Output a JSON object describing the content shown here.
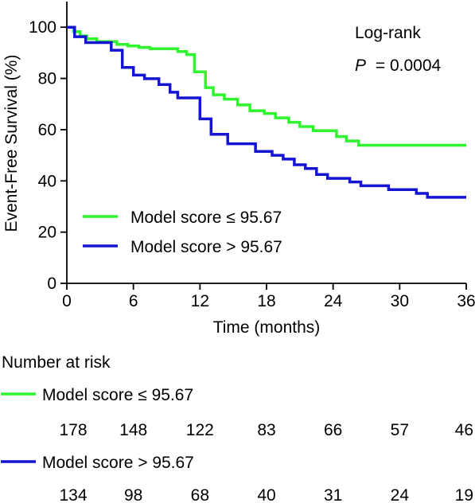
{
  "chart_data": {
    "type": "line",
    "title": "",
    "xlabel": "Time (months)",
    "ylabel": "Event-Free Survival (%)",
    "xlim": [
      0,
      36
    ],
    "ylim": [
      0,
      110
    ],
    "x_ticks": [
      0,
      6,
      12,
      18,
      24,
      30,
      36
    ],
    "y_ticks": [
      0,
      20,
      40,
      60,
      80,
      100
    ],
    "grid": false,
    "step": true,
    "legend_position": "lower-left",
    "annotation": {
      "test": "Log-rank",
      "p_label": "P",
      "p_value": "= 0.0004"
    },
    "series": [
      {
        "name": "Model score ≤ 95.67",
        "color": "#2ef52e",
        "points": [
          [
            0,
            100
          ],
          [
            0.6,
            100
          ],
          [
            0.6,
            98.3
          ],
          [
            1.2,
            98.3
          ],
          [
            1.2,
            96.6
          ],
          [
            1.8,
            96.6
          ],
          [
            1.8,
            95.5
          ],
          [
            2.7,
            95.5
          ],
          [
            2.7,
            94.4
          ],
          [
            4.5,
            94.4
          ],
          [
            4.5,
            93.3
          ],
          [
            5.5,
            93.3
          ],
          [
            5.5,
            92.7
          ],
          [
            6.5,
            92.7
          ],
          [
            6.5,
            92.1
          ],
          [
            7.5,
            92.1
          ],
          [
            7.5,
            91.6
          ],
          [
            10,
            91.6
          ],
          [
            10,
            90.5
          ],
          [
            10.8,
            90.5
          ],
          [
            10.8,
            89.3
          ],
          [
            11.5,
            89.3
          ],
          [
            11.5,
            82.6
          ],
          [
            12.5,
            82.6
          ],
          [
            12.5,
            76.4
          ],
          [
            13.2,
            76.4
          ],
          [
            13.2,
            73.6
          ],
          [
            14.2,
            73.6
          ],
          [
            14.2,
            71.9
          ],
          [
            15.4,
            71.9
          ],
          [
            15.4,
            69.7
          ],
          [
            16.5,
            69.7
          ],
          [
            16.5,
            67.4
          ],
          [
            17.8,
            67.4
          ],
          [
            17.8,
            66.3
          ],
          [
            18.8,
            66.3
          ],
          [
            18.8,
            64.6
          ],
          [
            20,
            64.6
          ],
          [
            20,
            62.9
          ],
          [
            21,
            62.9
          ],
          [
            21,
            61.2
          ],
          [
            22.2,
            61.2
          ],
          [
            22.2,
            59.6
          ],
          [
            24.3,
            59.6
          ],
          [
            24.3,
            57.3
          ],
          [
            25.2,
            57.3
          ],
          [
            25.2,
            55.6
          ],
          [
            26.3,
            55.6
          ],
          [
            26.3,
            53.9
          ],
          [
            36,
            53.9
          ]
        ],
        "at_risk": [
          178,
          148,
          122,
          83,
          66,
          57,
          46
        ]
      },
      {
        "name": "Model score > 95.67",
        "color": "#1414d2",
        "points": [
          [
            0,
            100
          ],
          [
            0.7,
            100
          ],
          [
            0.7,
            96.3
          ],
          [
            1.7,
            96.3
          ],
          [
            1.7,
            94.0
          ],
          [
            4,
            94.0
          ],
          [
            4,
            91.0
          ],
          [
            5,
            91.0
          ],
          [
            5,
            84.3
          ],
          [
            6,
            84.3
          ],
          [
            6,
            81.3
          ],
          [
            7,
            81.3
          ],
          [
            7,
            79.9
          ],
          [
            8.3,
            79.9
          ],
          [
            8.3,
            77.6
          ],
          [
            9.3,
            77.6
          ],
          [
            9.3,
            74.6
          ],
          [
            10,
            74.6
          ],
          [
            10,
            72.4
          ],
          [
            12,
            72.4
          ],
          [
            12,
            64.2
          ],
          [
            13,
            64.2
          ],
          [
            13,
            58.2
          ],
          [
            14.5,
            58.2
          ],
          [
            14.5,
            54.5
          ],
          [
            17,
            54.5
          ],
          [
            17,
            51.5
          ],
          [
            18.5,
            51.5
          ],
          [
            18.5,
            50.0
          ],
          [
            19.5,
            50.0
          ],
          [
            19.5,
            48.5
          ],
          [
            20.5,
            48.5
          ],
          [
            20.5,
            46.3
          ],
          [
            21.5,
            46.3
          ],
          [
            21.5,
            44.8
          ],
          [
            22.5,
            44.8
          ],
          [
            22.5,
            42.5
          ],
          [
            23.5,
            42.5
          ],
          [
            23.5,
            41.0
          ],
          [
            25.5,
            41.0
          ],
          [
            25.5,
            39.6
          ],
          [
            26.5,
            39.6
          ],
          [
            26.5,
            38.1
          ],
          [
            29,
            38.1
          ],
          [
            29,
            36.6
          ],
          [
            31.5,
            36.6
          ],
          [
            31.5,
            35.1
          ],
          [
            32.5,
            35.1
          ],
          [
            32.5,
            33.6
          ],
          [
            36,
            33.6
          ]
        ],
        "at_risk": [
          134,
          98,
          68,
          40,
          31,
          24,
          19
        ]
      }
    ]
  },
  "risk_table": {
    "title": "Number at risk"
  }
}
